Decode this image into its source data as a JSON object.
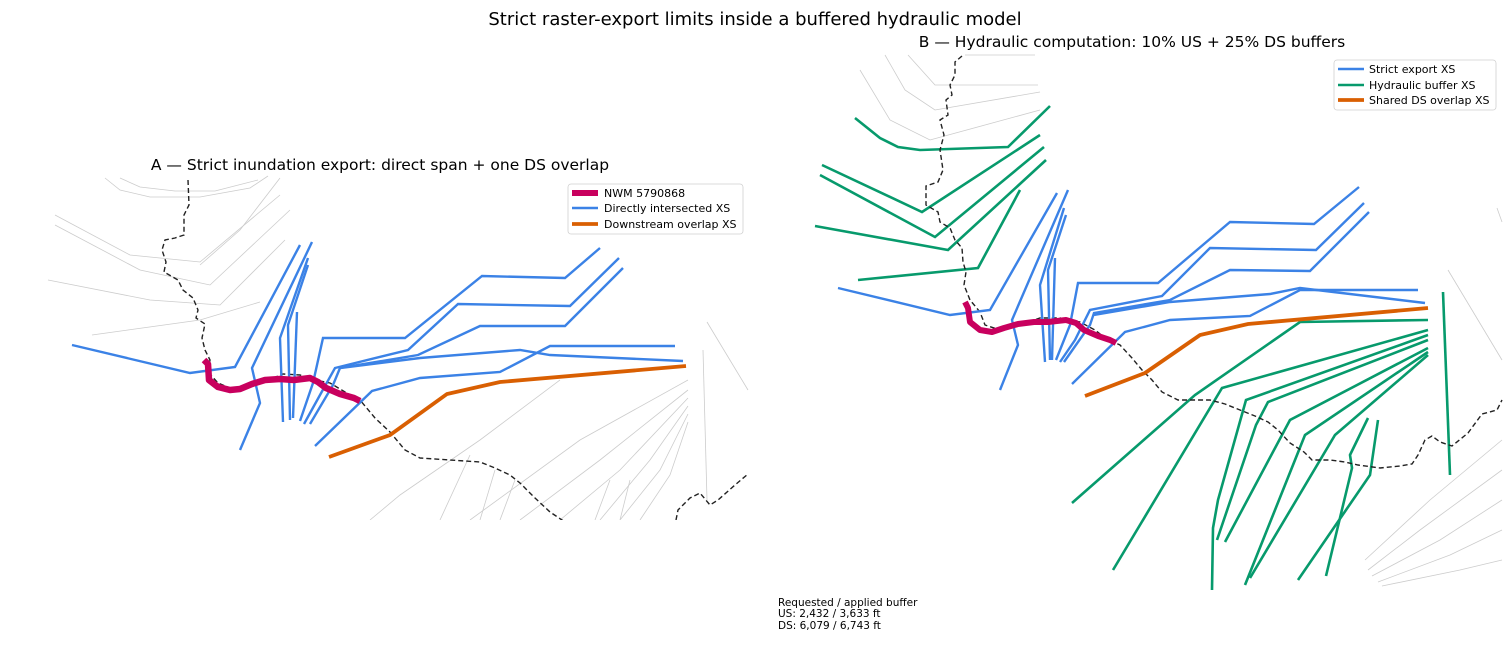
{
  "figure": {
    "title": "Strict raster-export limits inside a buffered hydraulic model"
  },
  "colors": {
    "reach": "#c8005e",
    "strict_xs": "#3b82e6",
    "buffer_xs": "#079a6c",
    "overlap_xs": "#d95f02",
    "flowline": "#222222",
    "context_xs": "#cccccc"
  },
  "panel_a": {
    "title": "A — Strict inundation export: direct span + one DS overlap",
    "legend": [
      {
        "label": "NWM 5790868",
        "color": "#c8005e"
      },
      {
        "label": "Directly intersected XS",
        "color": "#3b82e6"
      },
      {
        "label": "Downstream overlap XS",
        "color": "#d95f02"
      }
    ]
  },
  "panel_b": {
    "title": "B — Hydraulic computation: 10% US + 25% DS buffers",
    "legend": [
      {
        "label": "Strict export XS",
        "color": "#3b82e6"
      },
      {
        "label": "Hydraulic buffer XS",
        "color": "#079a6c"
      },
      {
        "label": "Shared DS overlap XS",
        "color": "#d95f02"
      }
    ],
    "buffer_note": {
      "heading": "Requested / applied buffer",
      "us": "US: 2,432 / 3,633 ft",
      "ds": "DS: 6,079 / 6,743 ft"
    }
  }
}
